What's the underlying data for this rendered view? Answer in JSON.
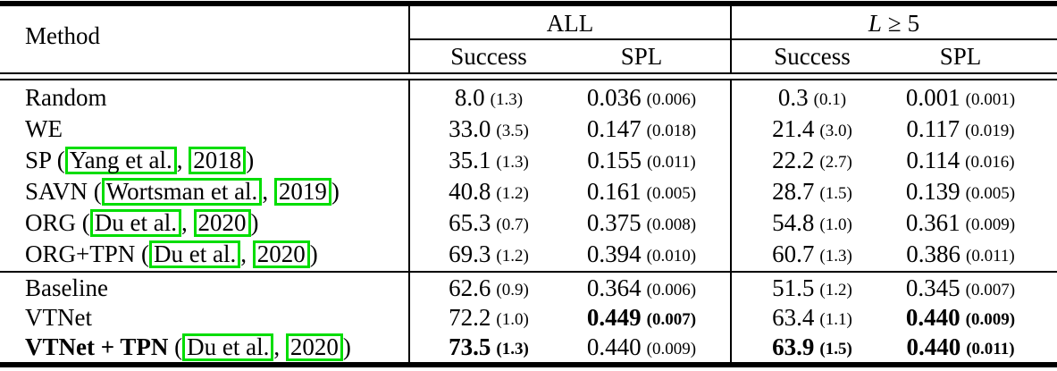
{
  "table": {
    "colors": {
      "citation_box": "#00dd00",
      "rule": "#000000",
      "text": "#000000"
    },
    "header": {
      "method_label": "Method",
      "group1": {
        "label": "ALL"
      },
      "group2": {
        "var": "L",
        "rel": "≥",
        "num": "5"
      },
      "sub": {
        "all_success": "Success",
        "all_spl": "SPL",
        "l5_success": "Success",
        "l5_spl": "SPL"
      }
    },
    "chart_data": {
      "type": "table",
      "columns": [
        "Method",
        "ALL Success",
        "ALL SPL",
        "L≥5 Success",
        "L≥5 SPL"
      ],
      "note": "values shown as mean with (std)"
    },
    "sections": [
      {
        "rows": [
          {
            "method": {
              "name": "Random",
              "bold": false,
              "cite": null
            },
            "cells": [
              {
                "v": "8.0",
                "sd": "(1.3)",
                "bold": false
              },
              {
                "v": "0.036",
                "sd": "(0.006)",
                "bold": false
              },
              {
                "v": "0.3",
                "sd": "(0.1)",
                "bold": false
              },
              {
                "v": "0.001",
                "sd": "(0.001)",
                "bold": false
              }
            ]
          },
          {
            "method": {
              "name": "WE",
              "bold": false,
              "cite": null
            },
            "cells": [
              {
                "v": "33.0",
                "sd": "(3.5)",
                "bold": false
              },
              {
                "v": "0.147",
                "sd": "(0.018)",
                "bold": false
              },
              {
                "v": "21.4",
                "sd": "(3.0)",
                "bold": false
              },
              {
                "v": "0.117",
                "sd": "(0.019)",
                "bold": false
              }
            ]
          },
          {
            "method": {
              "name": "SP",
              "bold": false,
              "cite": {
                "authors": "Yang et al.",
                "year": "2018"
              }
            },
            "cells": [
              {
                "v": "35.1",
                "sd": "(1.3)",
                "bold": false
              },
              {
                "v": "0.155",
                "sd": "(0.011)",
                "bold": false
              },
              {
                "v": "22.2",
                "sd": "(2.7)",
                "bold": false
              },
              {
                "v": "0.114",
                "sd": "(0.016)",
                "bold": false
              }
            ]
          },
          {
            "method": {
              "name": "SAVN",
              "bold": false,
              "cite": {
                "authors": "Wortsman et al.",
                "year": "2019"
              }
            },
            "cells": [
              {
                "v": "40.8",
                "sd": "(1.2)",
                "bold": false
              },
              {
                "v": "0.161",
                "sd": "(0.005)",
                "bold": false
              },
              {
                "v": "28.7",
                "sd": "(1.5)",
                "bold": false
              },
              {
                "v": "0.139",
                "sd": "(0.005)",
                "bold": false
              }
            ]
          },
          {
            "method": {
              "name": "ORG",
              "bold": false,
              "cite": {
                "authors": "Du et al.",
                "year": "2020"
              }
            },
            "cells": [
              {
                "v": "65.3",
                "sd": "(0.7)",
                "bold": false
              },
              {
                "v": "0.375",
                "sd": "(0.008)",
                "bold": false
              },
              {
                "v": "54.8",
                "sd": "(1.0)",
                "bold": false
              },
              {
                "v": "0.361",
                "sd": "(0.009)",
                "bold": false
              }
            ]
          },
          {
            "method": {
              "name": "ORG+TPN",
              "bold": false,
              "cite": {
                "authors": "Du et al.",
                "year": "2020"
              }
            },
            "cells": [
              {
                "v": "69.3",
                "sd": "(1.2)",
                "bold": false
              },
              {
                "v": "0.394",
                "sd": "(0.010)",
                "bold": false
              },
              {
                "v": "60.7",
                "sd": "(1.3)",
                "bold": false
              },
              {
                "v": "0.386",
                "sd": "(0.011)",
                "bold": false
              }
            ]
          }
        ]
      },
      {
        "rows": [
          {
            "method": {
              "name": "Baseline",
              "bold": false,
              "cite": null
            },
            "cells": [
              {
                "v": "62.6",
                "sd": "(0.9)",
                "bold": false
              },
              {
                "v": "0.364",
                "sd": "(0.006)",
                "bold": false
              },
              {
                "v": "51.5",
                "sd": "(1.2)",
                "bold": false
              },
              {
                "v": "0.345",
                "sd": "(0.007)",
                "bold": false
              }
            ]
          },
          {
            "method": {
              "name": "VTNet",
              "bold": false,
              "cite": null
            },
            "cells": [
              {
                "v": "72.2",
                "sd": "(1.0)",
                "bold": false
              },
              {
                "v": "0.449",
                "sd": "(0.007)",
                "bold": true
              },
              {
                "v": "63.4",
                "sd": "(1.1)",
                "bold": false
              },
              {
                "v": "0.440",
                "sd": "(0.009)",
                "bold": true
              }
            ]
          },
          {
            "method": {
              "name": "VTNet + TPN",
              "bold": true,
              "cite": {
                "authors": "Du et al.",
                "year": "2020"
              }
            },
            "cells": [
              {
                "v": "73.5",
                "sd": "(1.3)",
                "bold": true
              },
              {
                "v": "0.440",
                "sd": "(0.009)",
                "bold": false
              },
              {
                "v": "63.9",
                "sd": "(1.5)",
                "bold": true
              },
              {
                "v": "0.440",
                "sd": "(0.011)",
                "bold": true
              }
            ]
          }
        ]
      }
    ]
  }
}
